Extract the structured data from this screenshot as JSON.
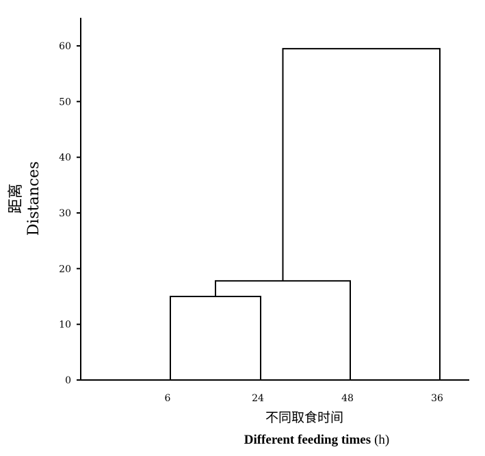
{
  "chart_data": {
    "type": "dendrogram",
    "leaves": [
      "6",
      "24",
      "48",
      "36"
    ],
    "merges": [
      {
        "left": "6",
        "right": "24",
        "height": 15
      },
      {
        "left": "6+24",
        "right": "48",
        "height": 17.8
      },
      {
        "left": "6+24+48",
        "right": "36",
        "height": 59.5
      }
    ],
    "ylim": [
      0,
      65
    ],
    "yticks": [
      0,
      10,
      20,
      30,
      40,
      50,
      60
    ],
    "ylabel_cn": "距离",
    "ylabel_en": "Distances",
    "xlabel_cn": "不同取食时间",
    "xlabel_en": "Different feeding times",
    "xlabel_unit": "(h)",
    "grid": false
  }
}
